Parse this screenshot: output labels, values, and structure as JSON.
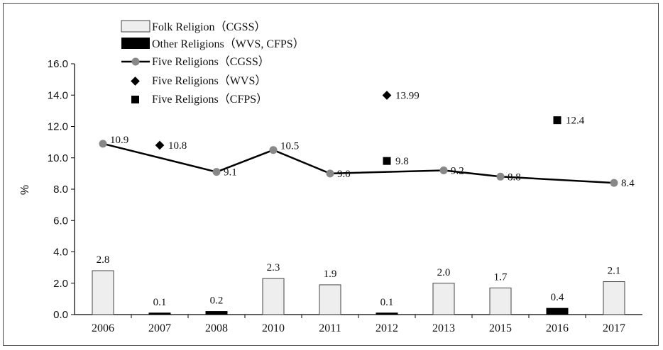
{
  "chart_data": {
    "type": "bar",
    "categories": [
      "2006",
      "2007",
      "2008",
      "2010",
      "2011",
      "2012",
      "2013",
      "2015",
      "2016",
      "2017"
    ],
    "ylabel": "%",
    "ylim": [
      0,
      16
    ],
    "yticks": [
      "0.0",
      "2.0",
      "4.0",
      "6.0",
      "8.0",
      "10.0",
      "12.0",
      "14.0",
      "16.0"
    ],
    "grid": false,
    "legend_position": "top-left",
    "series": [
      {
        "name": "Folk Religion（CGSS）",
        "type": "bar",
        "color": "#eeeeee",
        "values": [
          2.8,
          null,
          null,
          2.3,
          1.9,
          null,
          2.0,
          1.7,
          null,
          2.1
        ],
        "labels": [
          "2.8",
          null,
          null,
          "2.3",
          "1.9",
          null,
          "2.0",
          "1.7",
          null,
          "2.1"
        ]
      },
      {
        "name": "Other Religions（WVS, CFPS）",
        "type": "bar",
        "color": "#000000",
        "values": [
          null,
          0.1,
          0.2,
          null,
          null,
          0.1,
          null,
          null,
          0.4,
          null
        ],
        "labels": [
          null,
          "0.1",
          "0.2",
          null,
          null,
          "0.1",
          null,
          null,
          "0.4",
          null
        ]
      },
      {
        "name": "Five Religions（CGSS）",
        "type": "line",
        "color": "#888888",
        "values": [
          10.9,
          null,
          9.1,
          10.5,
          9.0,
          null,
          9.2,
          8.8,
          null,
          8.4
        ],
        "labels": [
          "10.9",
          null,
          "9.1",
          "10.5",
          "9.0",
          null,
          "9.2",
          "8.8",
          null,
          "8.4"
        ]
      },
      {
        "name": "Five Religions（WVS）",
        "type": "scatter",
        "marker": "diamond",
        "color": "#000000",
        "values": [
          null,
          10.8,
          null,
          null,
          null,
          13.99,
          null,
          null,
          null,
          null
        ],
        "labels": [
          null,
          "10.8",
          null,
          null,
          null,
          "13.99",
          null,
          null,
          null,
          null
        ]
      },
      {
        "name": "Five Religions（CFPS）",
        "type": "scatter",
        "marker": "square",
        "color": "#000000",
        "values": [
          null,
          null,
          null,
          null,
          null,
          9.8,
          null,
          null,
          12.4,
          null
        ],
        "labels": [
          null,
          null,
          null,
          null,
          null,
          "9.8",
          null,
          null,
          "12.4",
          null
        ]
      }
    ]
  }
}
